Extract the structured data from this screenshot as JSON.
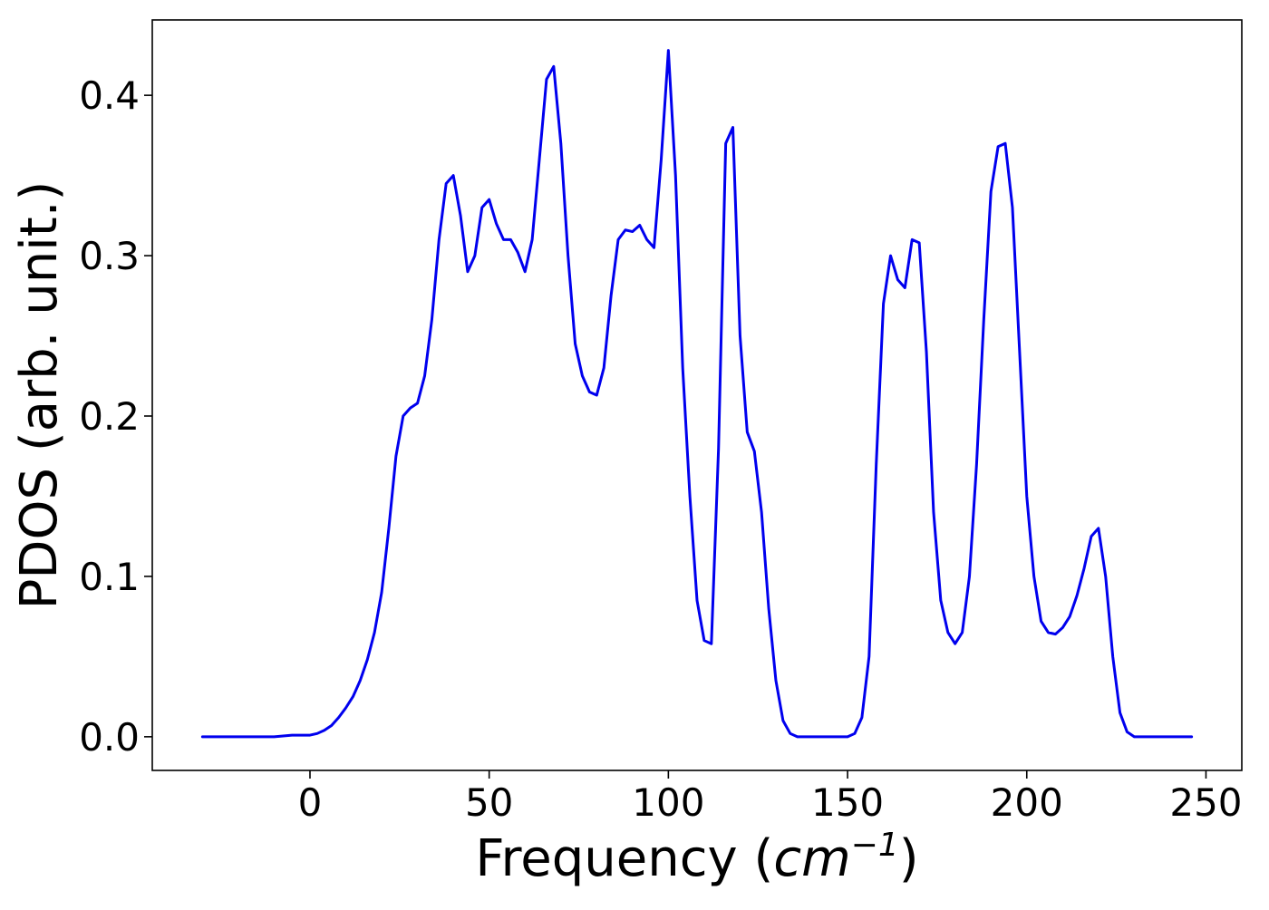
{
  "chart_data": {
    "type": "line",
    "title": "",
    "xlabel": "Frequency (cm⁻¹)",
    "xlabel_parts": {
      "prefix": "Frequency (",
      "unit_base": "cm",
      "unit_exponent": "−1",
      "suffix": ")"
    },
    "ylabel": "PDOS (arb. unit.)",
    "xlim": [
      -44,
      260
    ],
    "ylim": [
      -0.021,
      0.447
    ],
    "xticks": [
      0,
      50,
      100,
      150,
      200,
      250
    ],
    "yticks": [
      0.0,
      0.1,
      0.2,
      0.3,
      0.4
    ],
    "xtick_labels": [
      "0",
      "50",
      "100",
      "150",
      "200",
      "250"
    ],
    "ytick_labels": [
      "0.0",
      "0.1",
      "0.2",
      "0.3",
      "0.4"
    ],
    "grid": false,
    "legend": "none",
    "colors": {
      "line": "#0000ee",
      "axes": "#000000",
      "background": "#ffffff"
    },
    "series": [
      {
        "x": [
          -30,
          -20,
          -10,
          -5,
          0,
          2,
          4,
          6,
          8,
          10,
          12,
          14,
          16,
          18,
          20,
          22,
          24,
          26,
          28,
          30,
          32,
          34,
          36,
          38,
          40,
          42,
          44,
          46,
          48,
          50,
          52,
          54,
          56,
          58,
          60,
          62,
          64,
          66,
          68,
          70,
          72,
          74,
          76,
          78,
          80,
          82,
          84,
          86,
          88,
          90,
          92,
          94,
          96,
          98,
          100,
          102,
          104,
          106,
          108,
          110,
          112,
          114,
          116,
          118,
          120,
          122,
          124,
          126,
          128,
          130,
          132,
          134,
          136,
          140,
          145,
          150,
          152,
          154,
          156,
          158,
          160,
          162,
          164,
          166,
          168,
          170,
          172,
          174,
          176,
          178,
          180,
          182,
          184,
          186,
          188,
          190,
          192,
          194,
          196,
          198,
          200,
          202,
          204,
          206,
          208,
          210,
          212,
          214,
          216,
          218,
          220,
          222,
          224,
          226,
          228,
          230,
          235,
          240,
          246
        ],
        "y": [
          0.0,
          0.0,
          0.0,
          0.001,
          0.001,
          0.002,
          0.004,
          0.007,
          0.012,
          0.018,
          0.025,
          0.035,
          0.048,
          0.065,
          0.09,
          0.13,
          0.175,
          0.2,
          0.205,
          0.208,
          0.225,
          0.26,
          0.31,
          0.345,
          0.35,
          0.325,
          0.29,
          0.3,
          0.33,
          0.335,
          0.32,
          0.31,
          0.31,
          0.302,
          0.29,
          0.31,
          0.36,
          0.41,
          0.418,
          0.37,
          0.3,
          0.245,
          0.225,
          0.215,
          0.213,
          0.23,
          0.275,
          0.31,
          0.316,
          0.315,
          0.319,
          0.31,
          0.305,
          0.36,
          0.428,
          0.35,
          0.23,
          0.15,
          0.085,
          0.06,
          0.058,
          0.18,
          0.37,
          0.38,
          0.25,
          0.19,
          0.178,
          0.14,
          0.08,
          0.035,
          0.01,
          0.002,
          0.0,
          0.0,
          0.0,
          0.0,
          0.002,
          0.012,
          0.05,
          0.17,
          0.27,
          0.3,
          0.285,
          0.28,
          0.31,
          0.308,
          0.24,
          0.14,
          0.085,
          0.065,
          0.058,
          0.065,
          0.1,
          0.17,
          0.26,
          0.34,
          0.368,
          0.37,
          0.33,
          0.24,
          0.15,
          0.1,
          0.072,
          0.065,
          0.064,
          0.068,
          0.075,
          0.088,
          0.105,
          0.125,
          0.13,
          0.1,
          0.05,
          0.015,
          0.003,
          0.0,
          0.0,
          0.0,
          0.0
        ]
      }
    ]
  }
}
